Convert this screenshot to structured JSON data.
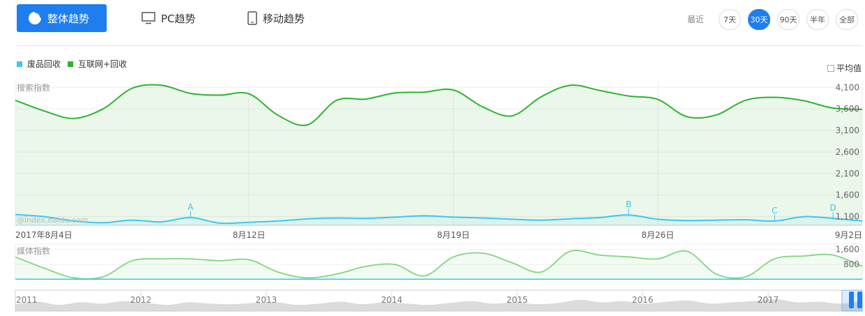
{
  "tabs": {
    "overall": "整体趋势",
    "pc": "PC趋势",
    "mobile": "移动趋势"
  },
  "range": {
    "label": "最近",
    "options": [
      "7天",
      "30天",
      "90天",
      "半年",
      "全部"
    ],
    "selected": "30天"
  },
  "legend": {
    "items": [
      {
        "name": "废品回收",
        "color": "#3ec6f0"
      },
      {
        "name": "互联网+回收",
        "color": "#2fb32f"
      }
    ]
  },
  "average_label": "平均值",
  "watermark": "@index.baidu.com",
  "colors": {
    "accent": "#1e7ef0",
    "series1": "#3ec6f0",
    "series2": "#2fb32f",
    "media": "#7fd67f"
  },
  "chart_data": [
    {
      "type": "line",
      "title": "搜索指数",
      "x": [
        "2017-08-04",
        "2017-08-05",
        "2017-08-06",
        "2017-08-07",
        "2017-08-08",
        "2017-08-09",
        "2017-08-10",
        "2017-08-11",
        "2017-08-12",
        "2017-08-13",
        "2017-08-14",
        "2017-08-15",
        "2017-08-16",
        "2017-08-17",
        "2017-08-18",
        "2017-08-19",
        "2017-08-20",
        "2017-08-21",
        "2017-08-22",
        "2017-08-23",
        "2017-08-24",
        "2017-08-25",
        "2017-08-26",
        "2017-08-27",
        "2017-08-28",
        "2017-08-29",
        "2017-08-30",
        "2017-08-31",
        "2017-09-01",
        "2017-09-02"
      ],
      "x_tick_labels": [
        "2017年8月4日",
        "8月12日",
        "8月19日",
        "8月26日",
        "9月2日"
      ],
      "y_ticks": [
        "1,100",
        "1,600",
        "2,100",
        "2,600",
        "3,100",
        "3,600",
        "4,100"
      ],
      "ylim": [
        900,
        4250
      ],
      "series": [
        {
          "name": "废品回收",
          "values": [
            1150,
            1100,
            1000,
            960,
            1020,
            980,
            1080,
            950,
            970,
            1000,
            1050,
            1070,
            1060,
            1090,
            1120,
            1090,
            1070,
            1040,
            1020,
            1050,
            1080,
            1140,
            1040,
            1010,
            1020,
            1030,
            1000,
            1100,
            1060,
            1000
          ]
        },
        {
          "name": "互联网+回收",
          "values": [
            3800,
            3550,
            3380,
            3600,
            4080,
            4150,
            3960,
            3920,
            3950,
            3450,
            3230,
            3800,
            3830,
            3970,
            3990,
            4040,
            3650,
            3440,
            3880,
            4150,
            4030,
            3900,
            3820,
            3420,
            3460,
            3800,
            3870,
            3790,
            3620,
            3590
          ]
        }
      ],
      "annotations": [
        {
          "label": "A",
          "x": "2017-08-10"
        },
        {
          "label": "B",
          "x": "2017-08-25"
        },
        {
          "label": "C",
          "x": "2017-08-30"
        },
        {
          "label": "D",
          "x": "2017-09-01"
        }
      ],
      "grid": true
    },
    {
      "type": "area",
      "title": "媒体指数",
      "y_ticks": [
        "800",
        "1,600"
      ],
      "ylim": [
        0,
        1800
      ],
      "series": [
        {
          "name": "互联网+回收",
          "values": [
            1200,
            600,
            100,
            150,
            1000,
            1100,
            1100,
            1000,
            1050,
            400,
            100,
            300,
            700,
            800,
            200,
            1200,
            1400,
            900,
            400,
            1500,
            1300,
            1200,
            1100,
            1500,
            300,
            150,
            1100,
            1250,
            1300,
            700
          ]
        },
        {
          "name": "废品回收",
          "values": [
            30,
            30,
            30,
            30,
            30,
            30,
            30,
            30,
            30,
            30,
            30,
            30,
            30,
            30,
            30,
            30,
            30,
            30,
            30,
            30,
            30,
            30,
            30,
            30,
            30,
            30,
            30,
            30,
            30,
            30
          ]
        }
      ]
    },
    {
      "type": "area",
      "title": "",
      "x_tick_labels": [
        "2011",
        "2012",
        "2013",
        "2014",
        "2015",
        "2016",
        "2017"
      ],
      "series": [
        {
          "name": "",
          "values": [
            0.55,
            0.75,
            0.5,
            0.7,
            0.6,
            0.8,
            0.65,
            0.5,
            0.7,
            0.6,
            0.55,
            0.65,
            0.7,
            0.5,
            0.6,
            0.75,
            0.55,
            0.7,
            0.6,
            0.5,
            0.65,
            0.8,
            0.6,
            0.7,
            0.55,
            0.65,
            0.9,
            0.7,
            0.8,
            0.6,
            0.75,
            0.85,
            0.6,
            0.7,
            0.8,
            0.95,
            0.7,
            0.75,
            0.6,
            0.8
          ]
        }
      ]
    }
  ]
}
